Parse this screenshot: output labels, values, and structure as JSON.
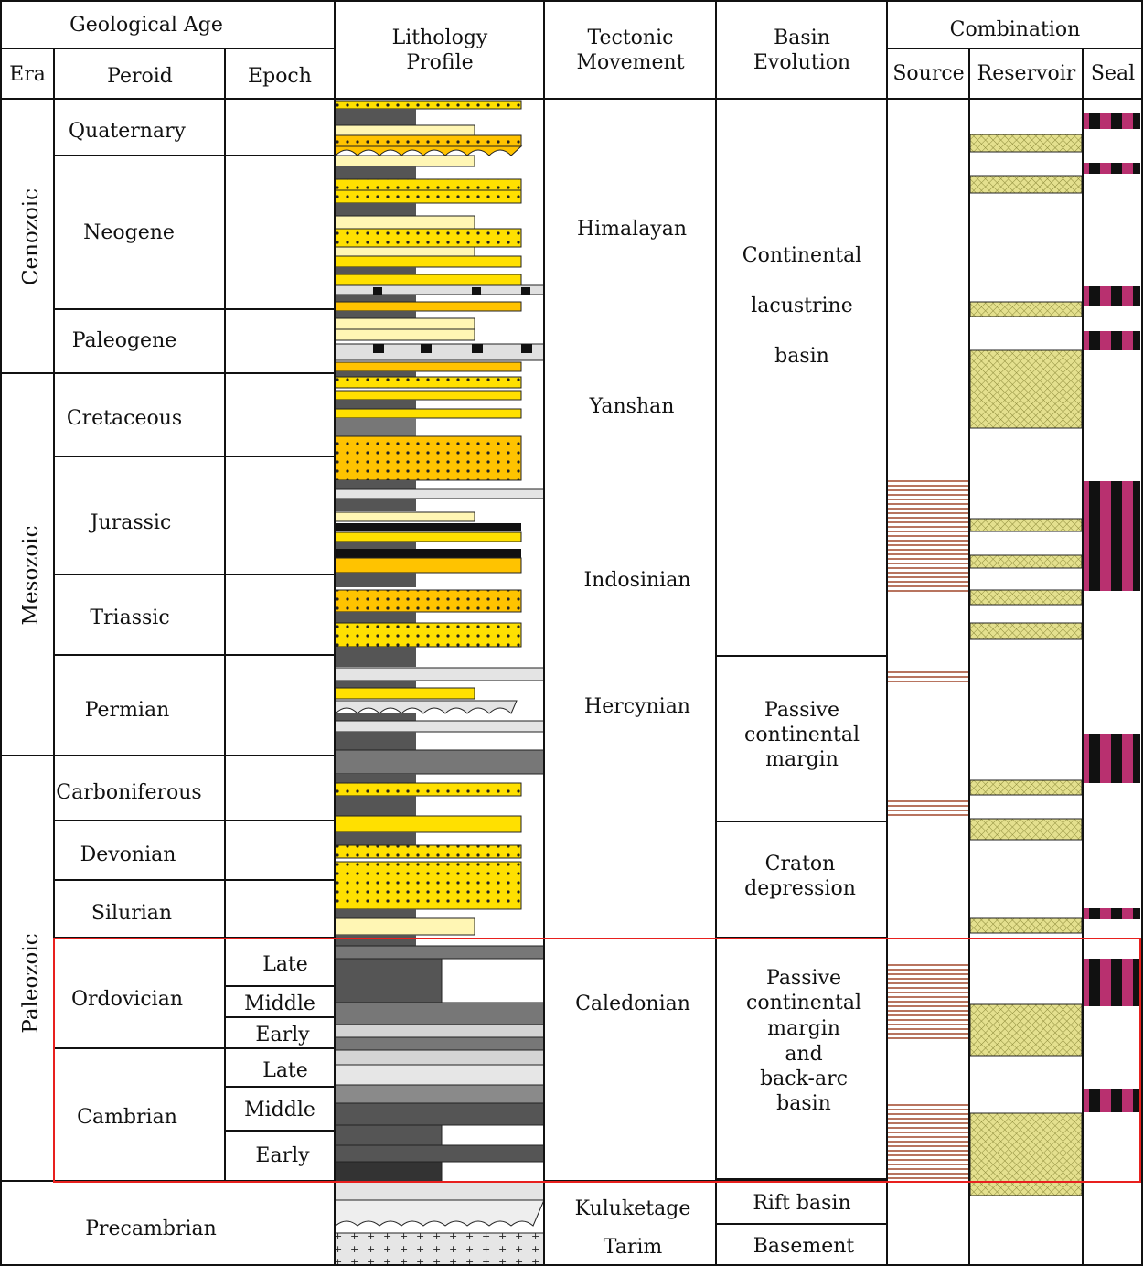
{
  "headers": {
    "geological_age": "Geological Age",
    "era": "Era",
    "period": "Peroid",
    "epoch": "Epoch",
    "lithology_line1": "Lithology",
    "lithology_line2": "Profile",
    "tectonic_line1": "Tectonic",
    "tectonic_line2": "Movement",
    "basin_line1": "Basin",
    "basin_line2": "Evolution",
    "combination": "Combination",
    "source": "Source",
    "reservoir": "Reservoir",
    "seal": "Seal"
  },
  "eras": [
    "Cenozoic",
    "Mesozoic",
    "Paleozoic"
  ],
  "periods": [
    "Quaternary",
    "Neogene",
    "Paleogene",
    "Cretaceous",
    "Jurassic",
    "Triassic",
    "Permian",
    "Carboniferous",
    "Devonian",
    "Silurian",
    "Ordovician",
    "Cambrian",
    "Precambrian"
  ],
  "epochs": {
    "ordovician": [
      "Late",
      "Middle",
      "Early"
    ],
    "cambrian": [
      "Late",
      "Middle",
      "Early"
    ]
  },
  "tectonic": [
    "Himalayan",
    "Yanshan",
    "Indosinian",
    "Hercynian",
    "Caledonian",
    "Kuluketage",
    "Tarim"
  ],
  "basin": {
    "continental": [
      "Continental",
      "lacustrine",
      "basin"
    ],
    "passive": [
      "Passive",
      "continental",
      "margin"
    ],
    "craton": [
      "Craton",
      "depression"
    ],
    "backarc": [
      "Passive",
      "continental",
      "margin",
      "and",
      "back-arc",
      "basin"
    ],
    "rift": "Rift basin",
    "basement": "Basement"
  },
  "colors": {
    "yellow": "#ffe000",
    "orange": "#ffc300",
    "pale_yellow": "#fff6b4",
    "dark_gray": "#555555",
    "mid_gray": "#8a8a8a",
    "light_gray": "#d4d4d4",
    "magenta": "#b8306f",
    "reservoir_fill": "#e4e08e",
    "source_line": "#a0462a",
    "highlight": "#e8201e"
  }
}
